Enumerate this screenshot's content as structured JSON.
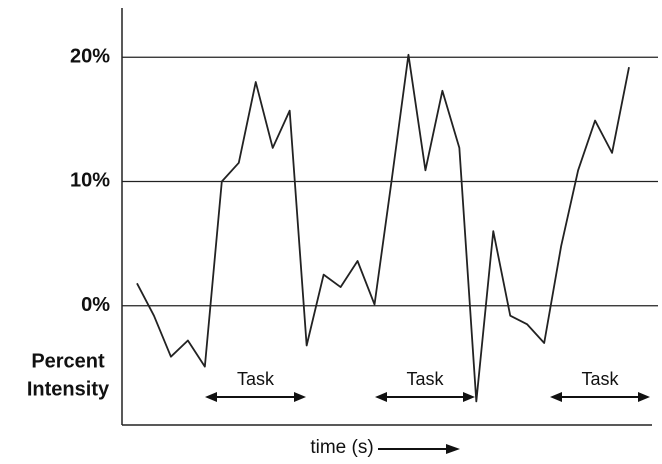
{
  "chart_data": {
    "type": "line",
    "ylabel": [
      "Percent",
      "Intensity"
    ],
    "xlabel": "time (s)",
    "categories": [
      null,
      null,
      null,
      null,
      null,
      null,
      null,
      null,
      null,
      null,
      null,
      null,
      null,
      null,
      null,
      null,
      null,
      null,
      null,
      null,
      null,
      null,
      null,
      null,
      null,
      null,
      null,
      null,
      null,
      null
    ],
    "series": [
      {
        "color": "#222222",
        "values": [
          1.8,
          -0.8,
          -4.1,
          -2.8,
          -4.9,
          10.0,
          11.5,
          18.0,
          12.7,
          15.7,
          -3.2,
          2.5,
          1.5,
          3.6,
          0.1,
          10.0,
          20.2,
          10.9,
          17.3,
          12.7,
          -7.7,
          6.0,
          -0.8,
          -1.5,
          -3.0,
          4.8,
          10.9,
          14.9,
          12.3,
          19.2
        ]
      }
    ],
    "ylim": [
      -9.6,
      23.8
    ],
    "yticks": [
      {
        "value": 0,
        "label": "0%"
      },
      {
        "value": 10,
        "label": "10%"
      },
      {
        "value": 20,
        "label": "20%"
      }
    ],
    "grid": true,
    "annotations": [
      "Task",
      "Task",
      "Task"
    ]
  }
}
